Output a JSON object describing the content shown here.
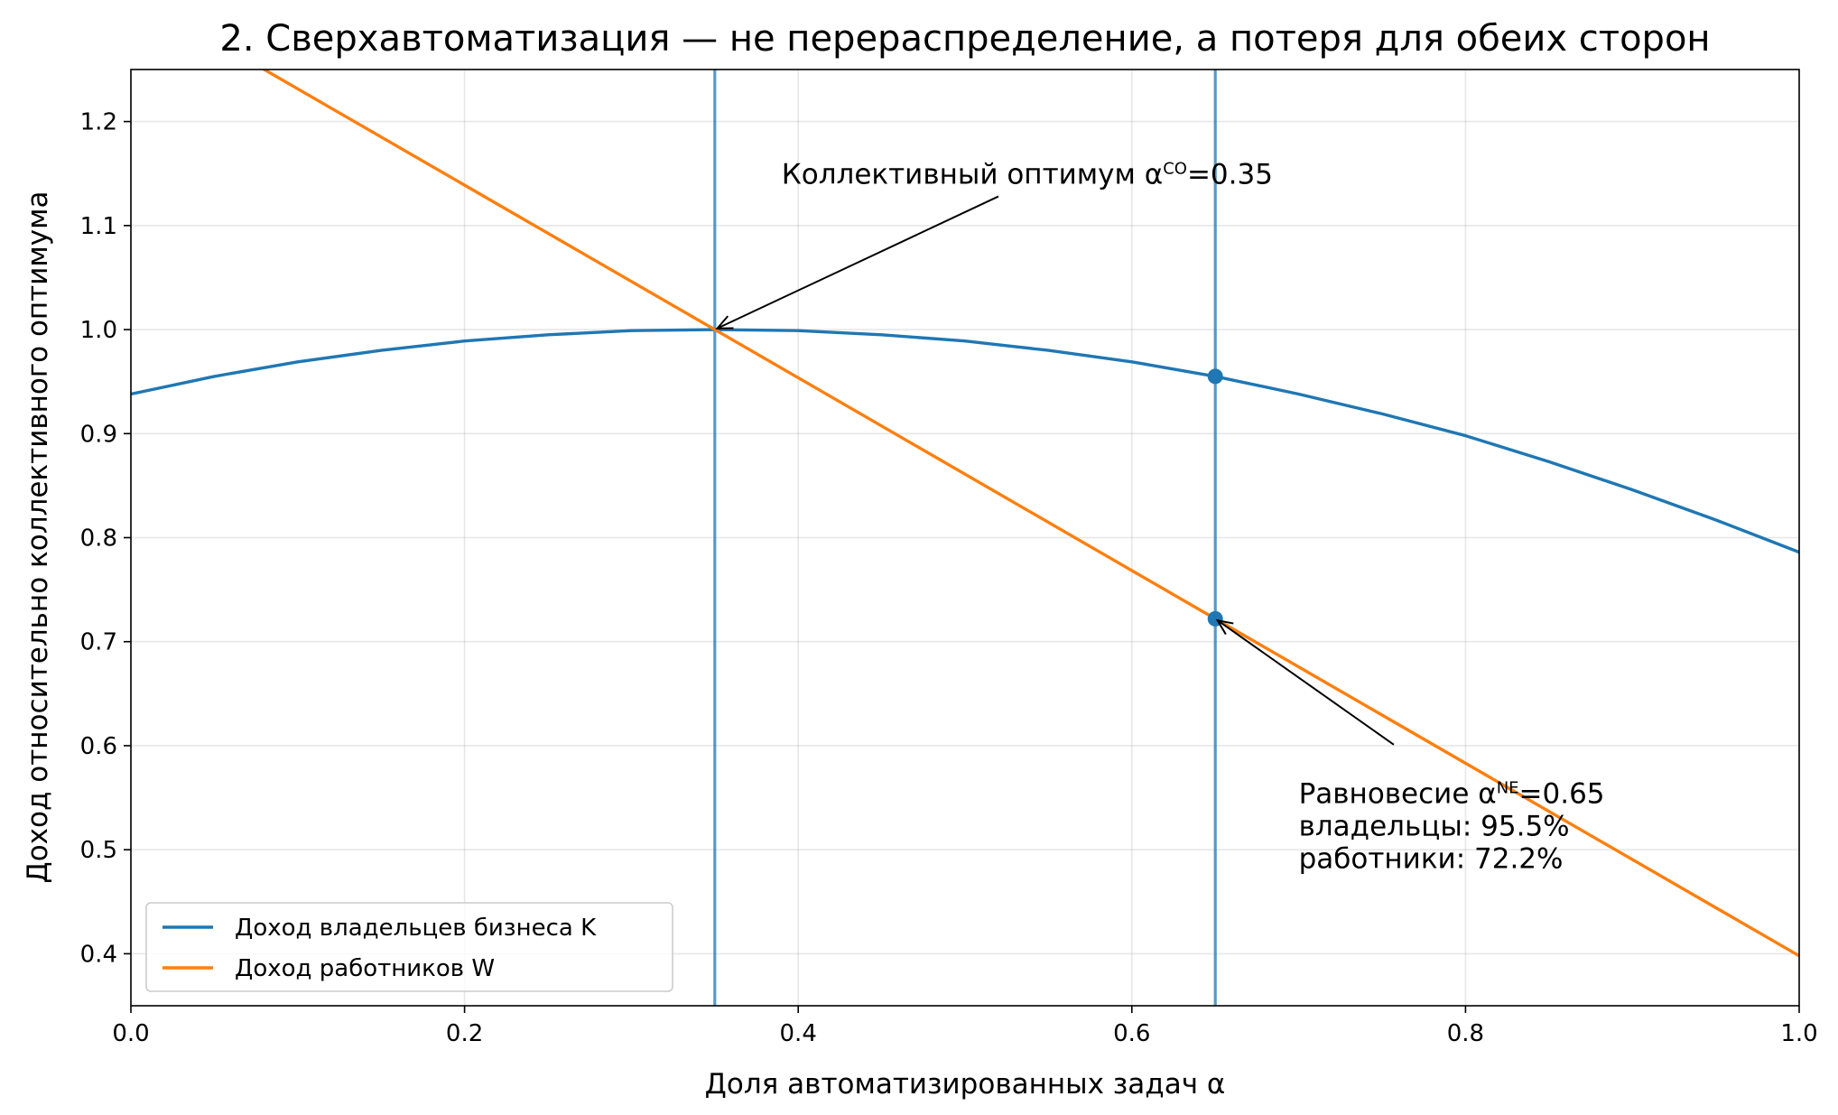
{
  "chart_data": {
    "type": "line",
    "title": "2. Сверхавтоматизация — не перераспределение, а потеря для обеих сторон",
    "xlabel": "Доля автоматизированных задач α",
    "ylabel": "Доход относительно коллективного оптимума",
    "xlim": [
      0.0,
      1.0
    ],
    "ylim": [
      0.35,
      1.25
    ],
    "x_ticks": [
      "0.0",
      "0.2",
      "0.4",
      "0.6",
      "0.8",
      "1.0"
    ],
    "y_ticks": [
      "0.4",
      "0.5",
      "0.6",
      "0.7",
      "0.8",
      "0.9",
      "1.0",
      "1.1",
      "1.2"
    ],
    "grid": true,
    "legend_position": "lower-left",
    "series": [
      {
        "name": "Доход владельцев бизнеса K",
        "color": "#1f77b4",
        "x": [
          0.0,
          0.05,
          0.1,
          0.15,
          0.2,
          0.25,
          0.3,
          0.35,
          0.4,
          0.45,
          0.5,
          0.55,
          0.6,
          0.65,
          0.7,
          0.75,
          0.8,
          0.85,
          0.9,
          0.95,
          1.0
        ],
        "y": [
          0.938,
          0.955,
          0.969,
          0.98,
          0.989,
          0.995,
          0.999,
          1.0,
          0.999,
          0.995,
          0.989,
          0.98,
          0.969,
          0.955,
          0.938,
          0.919,
          0.898,
          0.873,
          0.846,
          0.817,
          0.786
        ]
      },
      {
        "name": "Доход работников W",
        "color": "#ff7f0e",
        "x": [
          0.0,
          0.35,
          0.65,
          1.0
        ],
        "y": [
          1.324,
          1.0,
          0.722,
          0.398
        ]
      }
    ],
    "vertical_lines": [
      {
        "x": 0.35,
        "color": "#1f77b4"
      },
      {
        "x": 0.65,
        "color": "#1f77b4"
      }
    ],
    "markers": [
      {
        "x": 0.65,
        "y": 0.955,
        "color": "#1f77b4"
      },
      {
        "x": 0.65,
        "y": 0.722,
        "color": "#1f77b4"
      }
    ],
    "annotations": [
      {
        "lines": [
          "Коллективный оптимум α",
          "CO",
          "=0.35"
        ],
        "text_x": 0.39,
        "text_y": 1.14,
        "arrow_from_x": 0.52,
        "arrow_from_y": 1.128,
        "arrow_to_x": 0.35,
        "arrow_to_y": 1.0
      },
      {
        "lines": [
          "Равновесие α",
          "NE",
          "=0.65",
          "владельцы: 95.5%",
          "работники: 72.2%"
        ],
        "text_x": 0.7,
        "text_y": 0.545,
        "arrow_from_x": 0.757,
        "arrow_from_y": 0.601,
        "arrow_to_x": 0.65,
        "arrow_to_y": 0.722
      }
    ]
  }
}
